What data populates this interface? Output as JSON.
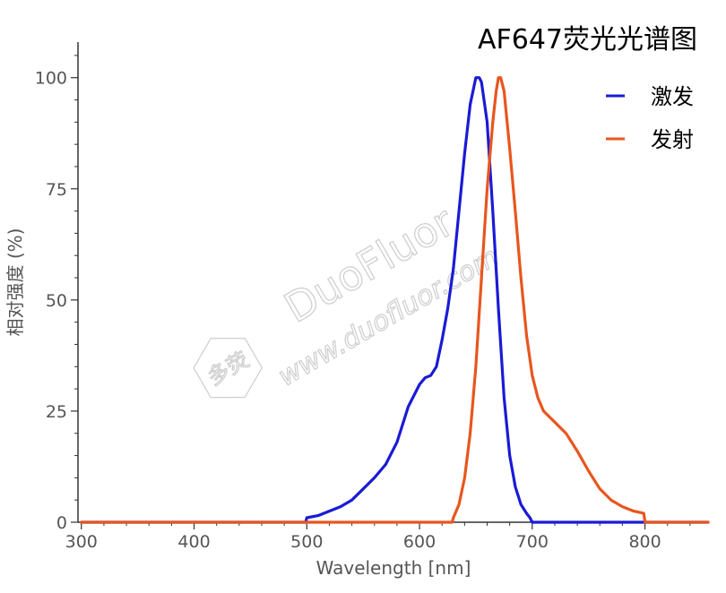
{
  "chart_data": {
    "type": "line",
    "title": "AF647荧光光谱图",
    "xlabel": "Wavelength [nm]",
    "ylabel": "相对强度 (%)",
    "xlim": [
      297,
      856
    ],
    "ylim": [
      0,
      108
    ],
    "xticks": [
      300,
      400,
      500,
      600,
      700,
      800
    ],
    "yticks": [
      0,
      25,
      50,
      75,
      100
    ],
    "grid": false,
    "legend_position": "top-right",
    "series": [
      {
        "name": "激发",
        "color": "#1a1ad6",
        "points": [
          [
            300,
            0
          ],
          [
            499,
            0
          ],
          [
            500,
            1
          ],
          [
            510,
            1.5
          ],
          [
            520,
            2.5
          ],
          [
            530,
            3.5
          ],
          [
            540,
            5
          ],
          [
            550,
            7.5
          ],
          [
            560,
            10
          ],
          [
            570,
            13
          ],
          [
            580,
            18
          ],
          [
            590,
            26
          ],
          [
            600,
            31
          ],
          [
            605,
            32.5
          ],
          [
            610,
            33
          ],
          [
            615,
            35
          ],
          [
            620,
            41
          ],
          [
            625,
            48
          ],
          [
            630,
            57
          ],
          [
            635,
            70
          ],
          [
            640,
            83
          ],
          [
            645,
            94
          ],
          [
            650,
            100
          ],
          [
            653,
            100
          ],
          [
            655,
            99
          ],
          [
            660,
            90
          ],
          [
            665,
            70
          ],
          [
            670,
            48
          ],
          [
            675,
            28
          ],
          [
            680,
            15
          ],
          [
            685,
            8
          ],
          [
            690,
            4
          ],
          [
            695,
            2
          ],
          [
            698,
            1
          ],
          [
            700,
            0
          ],
          [
            856,
            0
          ]
        ]
      },
      {
        "name": "发射",
        "color": "#e8561e",
        "points": [
          [
            300,
            0
          ],
          [
            629,
            0
          ],
          [
            630,
            1
          ],
          [
            635,
            4
          ],
          [
            640,
            10
          ],
          [
            645,
            20
          ],
          [
            650,
            35
          ],
          [
            655,
            55
          ],
          [
            660,
            75
          ],
          [
            665,
            90
          ],
          [
            668,
            97
          ],
          [
            670,
            100
          ],
          [
            672,
            100
          ],
          [
            675,
            97
          ],
          [
            680,
            84
          ],
          [
            685,
            70
          ],
          [
            690,
            55
          ],
          [
            695,
            42
          ],
          [
            700,
            33
          ],
          [
            705,
            28
          ],
          [
            710,
            25
          ],
          [
            720,
            22.5
          ],
          [
            730,
            20
          ],
          [
            740,
            16
          ],
          [
            750,
            11.5
          ],
          [
            760,
            7.5
          ],
          [
            770,
            5
          ],
          [
            780,
            3.5
          ],
          [
            790,
            2.5
          ],
          [
            799,
            2
          ],
          [
            800,
            0
          ],
          [
            856,
            0
          ]
        ]
      }
    ],
    "watermark": {
      "brand": "DuoFluor",
      "url": "www.duofluor.com",
      "logo_text": "多荧"
    }
  }
}
